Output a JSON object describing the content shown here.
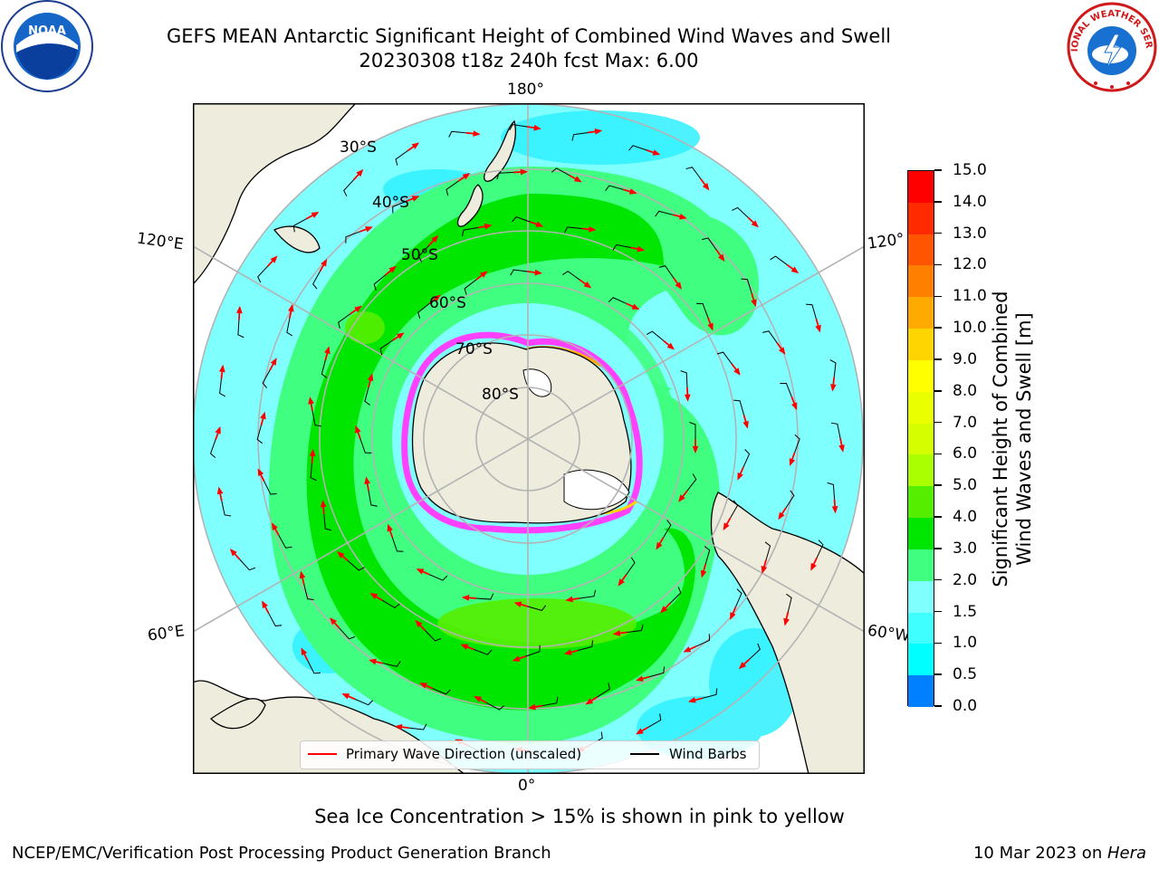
{
  "header": {
    "title_line1": "GEFS MEAN Antarctic Significant Height of Combined Wind Waves and Swell",
    "title_line2": "20230308 t18z 240h fcst   Max: 6.00"
  },
  "logos": {
    "left": {
      "name": "noaa-logo",
      "text": "NOAA"
    },
    "right": {
      "name": "nws-logo",
      "text": "NATIONAL WEATHER SERVICE"
    }
  },
  "map": {
    "longitude_labels": {
      "top": "180°",
      "bottom": "0°",
      "left_upper": "120°E",
      "left_lower": "60°E",
      "right_upper": "120°",
      "right_lower": "60°W"
    },
    "latitude_labels": [
      "30°S",
      "40°S",
      "50°S",
      "60°S",
      "70°S",
      "80°S"
    ],
    "colors": {
      "ocean_low": "#80ffff",
      "ocean_mid": "#40ff80",
      "ocean_high": "#00e600",
      "land": "#eeecdd",
      "ice": "#ff40ff",
      "arrow": "#ff0000"
    }
  },
  "colorbar": {
    "title_line1": "Significant Height of Combined",
    "title_line2": "Wind Waves and Swell [m]",
    "ticks": [
      "15.0",
      "14.0",
      "13.0",
      "12.0",
      "11.0",
      "10.0",
      "9.0",
      "8.0",
      "7.0",
      "6.0",
      "5.0",
      "4.0",
      "3.0",
      "2.0",
      "1.5",
      "1.0",
      "0.5",
      "0.0"
    ],
    "colors": [
      "#ff0000",
      "#ff2a00",
      "#ff5500",
      "#ff8000",
      "#ffaa00",
      "#ffd500",
      "#ffff00",
      "#eaff00",
      "#d5ff00",
      "#aaff00",
      "#55ee00",
      "#00e600",
      "#40ff80",
      "#80ffff",
      "#40ffff",
      "#00ffff",
      "#0080ff",
      "#0000ff"
    ]
  },
  "legend": {
    "wave_label": "Primary Wave Direction (unscaled)",
    "barb_label": "Wind Barbs"
  },
  "caption": "Sea Ice Concentration > 15% is shown in pink to yellow",
  "footer": {
    "left": "NCEP/EMC/Verification Post Processing Product Generation Branch",
    "right_date": "10 Mar 2023 on ",
    "right_machine": "Hera"
  }
}
